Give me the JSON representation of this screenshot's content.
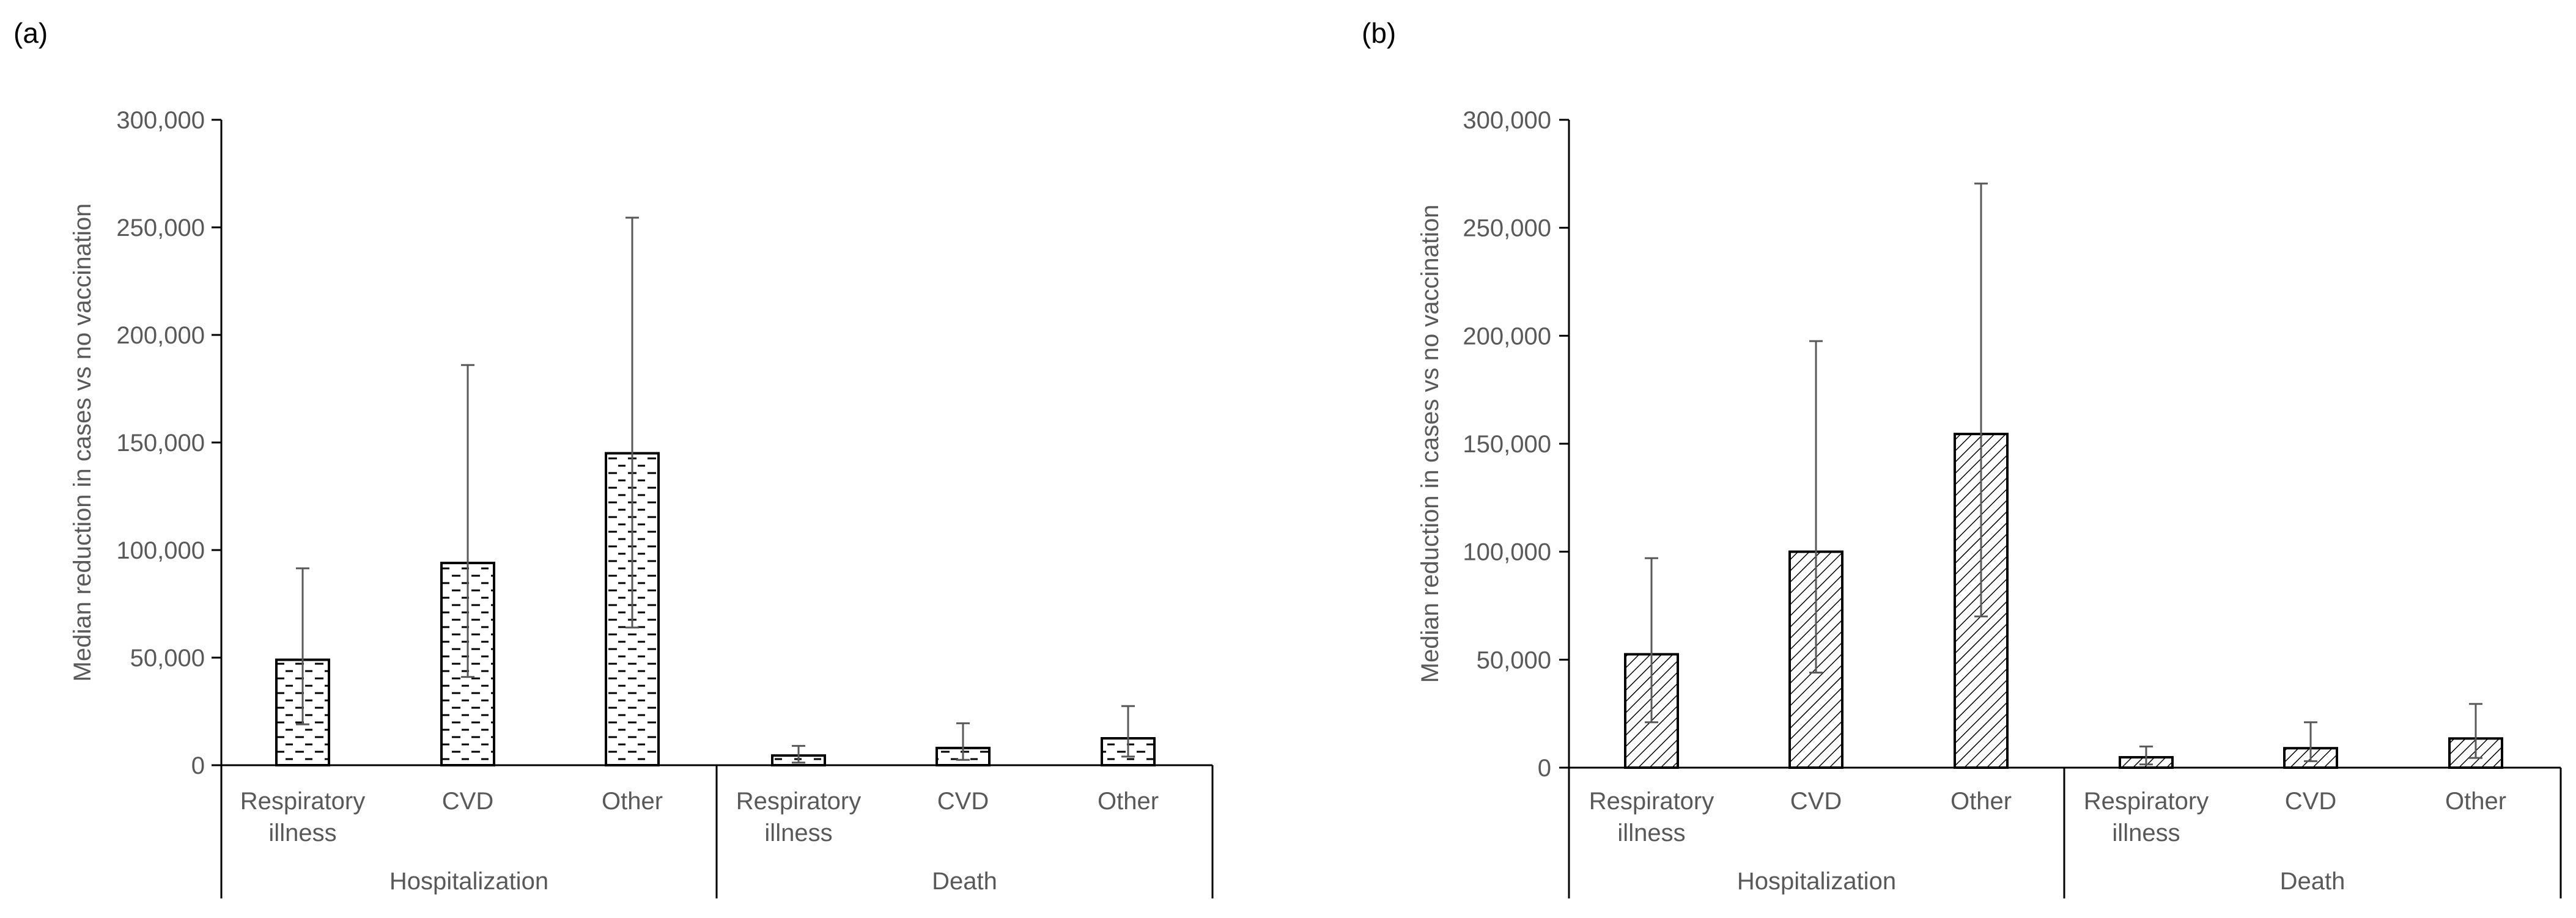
{
  "chart_data": [
    {
      "panel_label": "(a)",
      "type": "bar",
      "title": "",
      "ylabel": "Median reduction in  cases vs no vaccination",
      "ylim": [
        0,
        300000
      ],
      "yticks": [
        {
          "value": 0,
          "label": "0"
        },
        {
          "value": 50000,
          "label": "50,000"
        },
        {
          "value": 100000,
          "label": "100,000"
        },
        {
          "value": 150000,
          "label": "150,000"
        },
        {
          "value": 200000,
          "label": "200,000"
        },
        {
          "value": 250000,
          "label": "250,000"
        },
        {
          "value": 300000,
          "label": "300,000"
        }
      ],
      "groups": [
        {
          "label": "Hospitalization",
          "categories": [
            {
              "label": [
                "Respiratory",
                "illness"
              ],
              "value": 49000,
              "err_low": 19000,
              "err_high": 91500
            },
            {
              "label": [
                "CVD"
              ],
              "value": 94000,
              "err_low": 41000,
              "err_high": 186000
            },
            {
              "label": [
                "Other"
              ],
              "value": 145000,
              "err_low": 64000,
              "err_high": 254500
            }
          ]
        },
        {
          "label": "Death",
          "categories": [
            {
              "label": [
                "Respiratory",
                "illness"
              ],
              "value": 4500,
              "err_low": 1200,
              "err_high": 9000
            },
            {
              "label": [
                "CVD"
              ],
              "value": 8000,
              "err_low": 2500,
              "err_high": 19500
            },
            {
              "label": [
                "Other"
              ],
              "value": 12500,
              "err_low": 4000,
              "err_high": 27500
            }
          ]
        }
      ],
      "pattern": "horizontal-dash"
    },
    {
      "panel_label": "(b)",
      "type": "bar",
      "title": "",
      "ylabel": "Median reduction in cases vs no vaccination",
      "ylim": [
        0,
        300000
      ],
      "yticks": [
        {
          "value": 0,
          "label": "0"
        },
        {
          "value": 50000,
          "label": "50,000"
        },
        {
          "value": 100000,
          "label": "100,000"
        },
        {
          "value": 150000,
          "label": "150,000"
        },
        {
          "value": 200000,
          "label": "200,000"
        },
        {
          "value": 250000,
          "label": "250,000"
        },
        {
          "value": 300000,
          "label": "300,000"
        }
      ],
      "groups": [
        {
          "label": "Hospitalization",
          "categories": [
            {
              "label": [
                "Respiratory",
                "illness"
              ],
              "value": 52500,
              "err_low": 21000,
              "err_high": 97000
            },
            {
              "label": [
                "CVD"
              ],
              "value": 100000,
              "err_low": 44000,
              "err_high": 197500
            },
            {
              "label": [
                "Other"
              ],
              "value": 154500,
              "err_low": 70000,
              "err_high": 270500
            }
          ]
        },
        {
          "label": "Death",
          "categories": [
            {
              "label": [
                "Respiratory",
                "illness"
              ],
              "value": 4800,
              "err_low": 1500,
              "err_high": 9800
            },
            {
              "label": [
                "CVD"
              ],
              "value": 9000,
              "err_low": 3000,
              "err_high": 21000
            },
            {
              "label": [
                "Other"
              ],
              "value": 13500,
              "err_low": 4500,
              "err_high": 29500
            }
          ]
        }
      ],
      "pattern": "diagonal-hatch"
    }
  ],
  "colors": {
    "axis": "#000000",
    "text": "#595959",
    "bar_fill": "#ffffff",
    "pattern": "#000000",
    "error_bar": "#595959"
  }
}
